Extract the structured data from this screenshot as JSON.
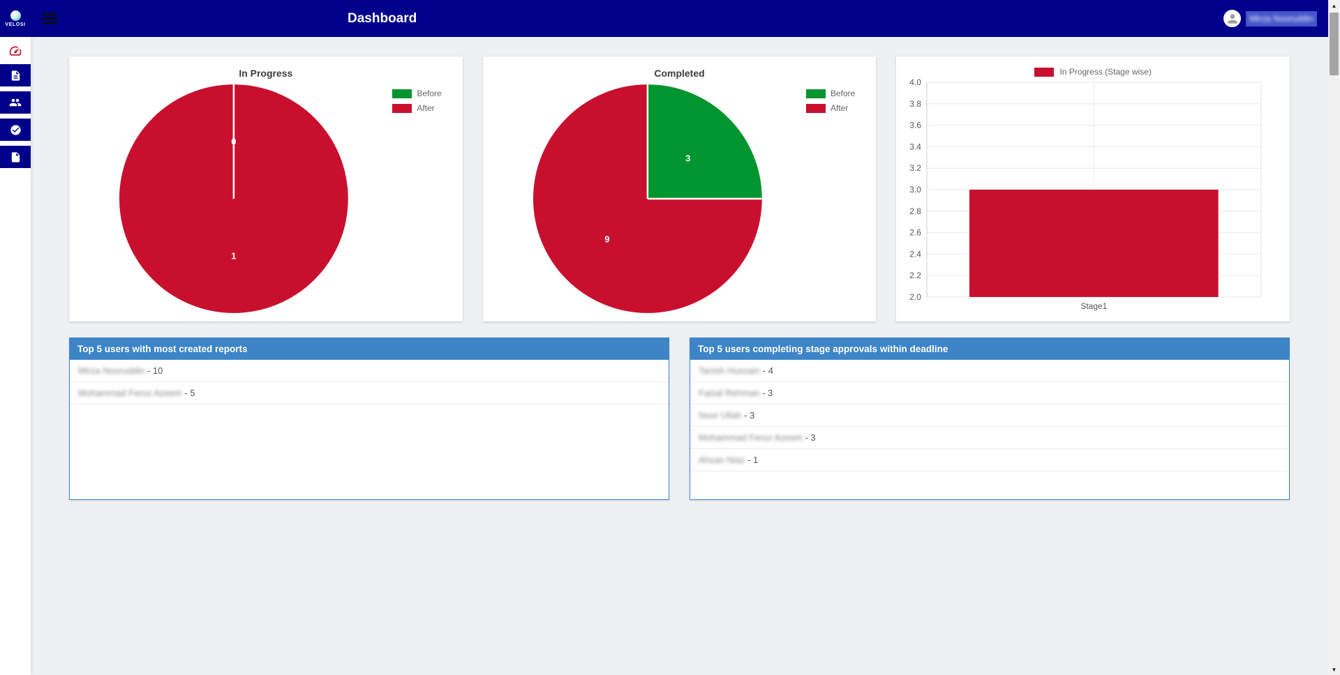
{
  "navbar": {
    "brand": "VELOSI",
    "title": "Dashboard",
    "user_name": "Mirza Nooruddin"
  },
  "sidebar": {
    "items": [
      {
        "id": "dashboard",
        "icon": "gauge-icon"
      },
      {
        "id": "reports",
        "icon": "report-icon"
      },
      {
        "id": "users",
        "icon": "users-icon"
      },
      {
        "id": "approvals",
        "icon": "check-circle-icon"
      },
      {
        "id": "documents",
        "icon": "document-icon"
      }
    ]
  },
  "chart_data": [
    {
      "type": "pie",
      "title": "In Progress",
      "labels": [
        "Before",
        "After"
      ],
      "values": [
        0,
        1
      ],
      "colors": [
        "#00952e",
        "#c8102e"
      ],
      "legend_position": "right"
    },
    {
      "type": "pie",
      "title": "Completed",
      "labels": [
        "Before",
        "After"
      ],
      "values": [
        3,
        9
      ],
      "colors": [
        "#00952e",
        "#c8102e"
      ],
      "legend_position": "right"
    },
    {
      "type": "bar",
      "legend": "In Progress (Stage wise)",
      "categories": [
        "Stage1"
      ],
      "values": [
        3
      ],
      "color": "#c8102e",
      "ylim": [
        2.0,
        4.0
      ],
      "ytick_step": 0.2,
      "grid": true
    }
  ],
  "lists": {
    "reports": {
      "title": "Top 5 users with most created reports",
      "items": [
        {
          "name": "Mirza Nooruddin",
          "count": 10
        },
        {
          "name": "Mohammad Feroz Azeem",
          "count": 5
        }
      ]
    },
    "approvals": {
      "title": "Top 5 users completing stage approvals within deadline",
      "items": [
        {
          "name": "Tanish Hussain",
          "count": 4
        },
        {
          "name": "Faisal Rehman",
          "count": 3
        },
        {
          "name": "Noor Ullah",
          "count": 3
        },
        {
          "name": "Mohammad Feroz Azeem",
          "count": 3
        },
        {
          "name": "Ahsan Niaz",
          "count": 1
        }
      ]
    }
  },
  "colors": {
    "navy": "#00008b",
    "red": "#c8102e",
    "green": "#00952e",
    "header_blue": "#3d85c6"
  }
}
